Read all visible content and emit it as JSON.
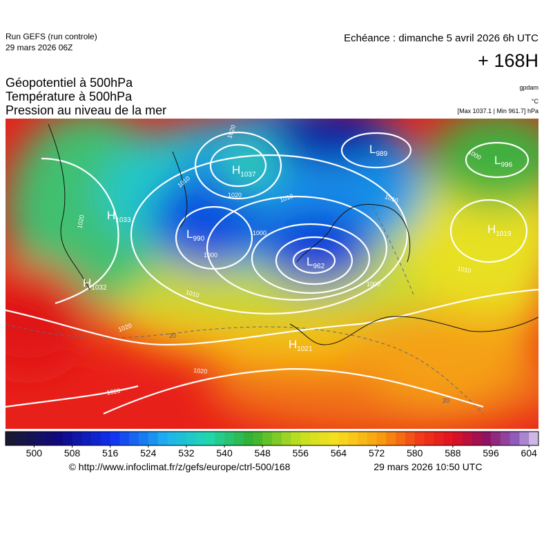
{
  "header": {
    "run": "Run GEFS (run controle)",
    "run_date": "29 mars 2026 06Z",
    "echeance": "Echéance : dimanche 5 avril 2026 6h UTC",
    "lead": "+ 168H"
  },
  "titles": [
    "Géopotentiel à 500hPa",
    "Température à 500hPa",
    "Pression au niveau de la mer"
  ],
  "units": {
    "geopotential": "gpdam",
    "temperature": "°C",
    "pressure_range": "[Max 1037.1 | Min 961.7] hPa"
  },
  "centers": [
    {
      "letter": "H",
      "value": "1037"
    },
    {
      "letter": "L",
      "value": "989"
    },
    {
      "letter": "L",
      "value": "996"
    },
    {
      "letter": "H",
      "value": "1033"
    },
    {
      "letter": "L",
      "value": "990"
    },
    {
      "letter": "L",
      "value": "962"
    },
    {
      "letter": "H",
      "value": "1019"
    },
    {
      "letter": "H",
      "value": "1032"
    },
    {
      "letter": "H",
      "value": "1021"
    }
  ],
  "contour_labels": [
    "1020",
    "1010",
    "1020",
    "1010",
    "1000",
    "1000",
    "1010",
    "1010",
    "1000",
    "1000",
    "1020",
    "1020",
    "1020",
    "1020",
    "1010",
    "20",
    "20"
  ],
  "colorbar": {
    "lim": [
      494,
      606
    ],
    "ticks": [
      500,
      508,
      516,
      524,
      532,
      540,
      548,
      556,
      564,
      572,
      580,
      588,
      596,
      604
    ]
  },
  "footer": {
    "source": "© http://www.infoclimat.fr/z/gefs/europe/ctrl-500/168",
    "timestamp": "29 mars 2026 10:50 UTC"
  }
}
